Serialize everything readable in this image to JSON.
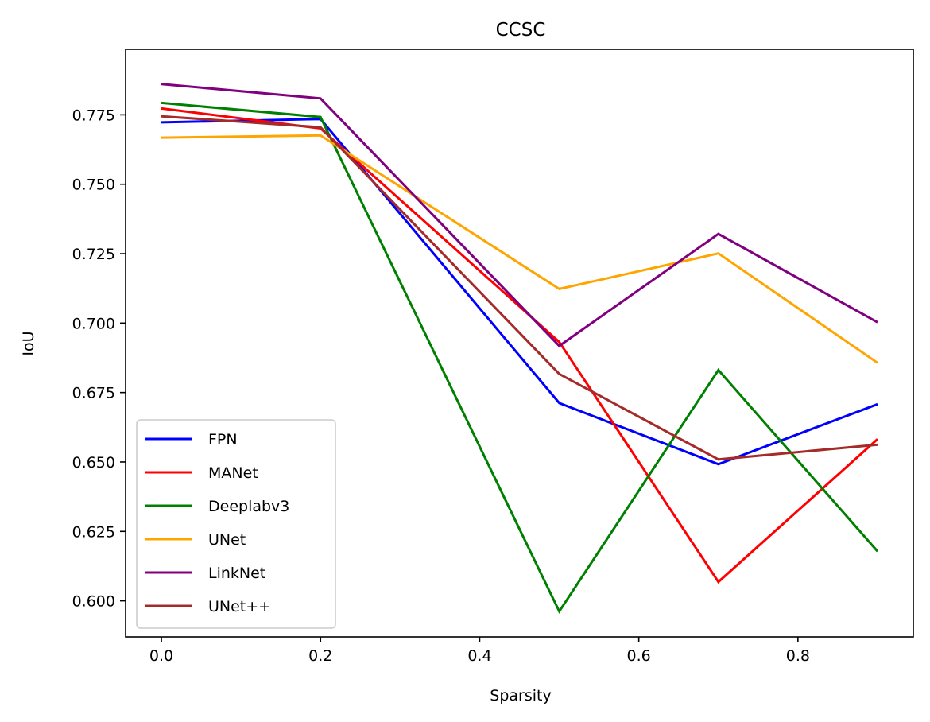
{
  "chart_data": {
    "type": "line",
    "title": "CCSC",
    "xlabel": "Sparsity",
    "ylabel": "IoU",
    "xlim": [
      -0.045,
      0.945
    ],
    "ylim": [
      0.587,
      0.7986
    ],
    "x": [
      0.0,
      0.2,
      0.5,
      0.7,
      0.9
    ],
    "x_ticks": [
      0.0,
      0.2,
      0.4,
      0.6,
      0.8
    ],
    "x_tick_labels": [
      "0.0",
      "0.2",
      "0.4",
      "0.6",
      "0.8"
    ],
    "y_ticks": [
      0.6,
      0.625,
      0.65,
      0.675,
      0.7,
      0.725,
      0.75,
      0.775
    ],
    "y_tick_labels": [
      "0.600",
      "0.625",
      "0.650",
      "0.675",
      "0.700",
      "0.725",
      "0.750",
      "0.775"
    ],
    "grid": false,
    "legend_position": "lower-left",
    "series": [
      {
        "name": "FPN",
        "color": "#0000ff",
        "values": [
          0.7723,
          0.7735,
          0.6712,
          0.6492,
          0.6708
        ]
      },
      {
        "name": "MANet",
        "color": "#ff0000",
        "values": [
          0.7773,
          0.7701,
          0.6932,
          0.6068,
          0.6582
        ]
      },
      {
        "name": "Deeplabv3",
        "color": "#008000",
        "values": [
          0.7793,
          0.7742,
          0.5962,
          0.6831,
          0.6178
        ]
      },
      {
        "name": "UNet",
        "color": "#ffa500",
        "values": [
          0.7668,
          0.7676,
          0.7123,
          0.7251,
          0.6857
        ]
      },
      {
        "name": "LinkNet",
        "color": "#800080",
        "values": [
          0.7861,
          0.7809,
          0.6918,
          0.7321,
          0.7003
        ]
      },
      {
        "name": "UNet++",
        "color": "#a52a2a",
        "values": [
          0.7745,
          0.7705,
          0.6817,
          0.6509,
          0.6562
        ]
      }
    ]
  }
}
